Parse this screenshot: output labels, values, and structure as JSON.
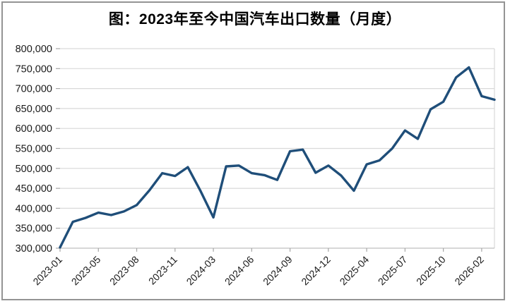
{
  "page": {
    "background": "#FFFFFF"
  },
  "colors": {
    "line": "#1F4E79",
    "grid": "#D9D9D9",
    "axis": "#BFBFBF",
    "tick": "#A6A6A6",
    "text": "#1A1A1A",
    "title_text": "#000000",
    "border": "#949494"
  },
  "chart_data": {
    "type": "line",
    "title": "图：2023年至今中国汽车出口数量（月度）",
    "xlabel": "",
    "ylabel": "",
    "grid": "horizontal",
    "legend": "none",
    "ylim": [
      300000,
      800000
    ],
    "y_tick_step": 50000,
    "y_tick_labels": [
      "300,000",
      "350,000",
      "400,000",
      "450,000",
      "500,000",
      "550,000",
      "600,000",
      "650,000",
      "700,000",
      "750,000",
      "800,000"
    ],
    "x_tick_interval": 3,
    "x_tick_labels": [
      "2023-01",
      "2023-05",
      "2023-08",
      "2023-11",
      "2024-03",
      "2024-06",
      "2024-09",
      "2024-12",
      "2025-04",
      "2025-07",
      "2025-10",
      "2026-02"
    ],
    "x": [
      "2023-01",
      "2023-03",
      "2023-04",
      "2023-05",
      "2023-06",
      "2023-07",
      "2023-08",
      "2023-09",
      "2023-10",
      "2023-11",
      "2023-12",
      "2024-02",
      "2024-03",
      "2024-04",
      "2024-05",
      "2024-06",
      "2024-07",
      "2024-08",
      "2024-09",
      "2024-10",
      "2024-11",
      "2024-12",
      "2025-02",
      "2025-03",
      "2025-04",
      "2025-05",
      "2025-06",
      "2025-07",
      "2025-08",
      "2025-09",
      "2025-10",
      "2025-11",
      "2025-12",
      "2026-02",
      "2026-03"
    ],
    "values": [
      302000,
      366000,
      376000,
      389000,
      383000,
      392000,
      408000,
      445000,
      488000,
      481000,
      503000,
      443000,
      377000,
      505000,
      507000,
      488000,
      483000,
      471000,
      543000,
      547000,
      489000,
      507000,
      482000,
      444000,
      510000,
      520000,
      550000,
      595000,
      574000,
      648000,
      667000,
      728000,
      753000,
      681000,
      672000
    ]
  }
}
